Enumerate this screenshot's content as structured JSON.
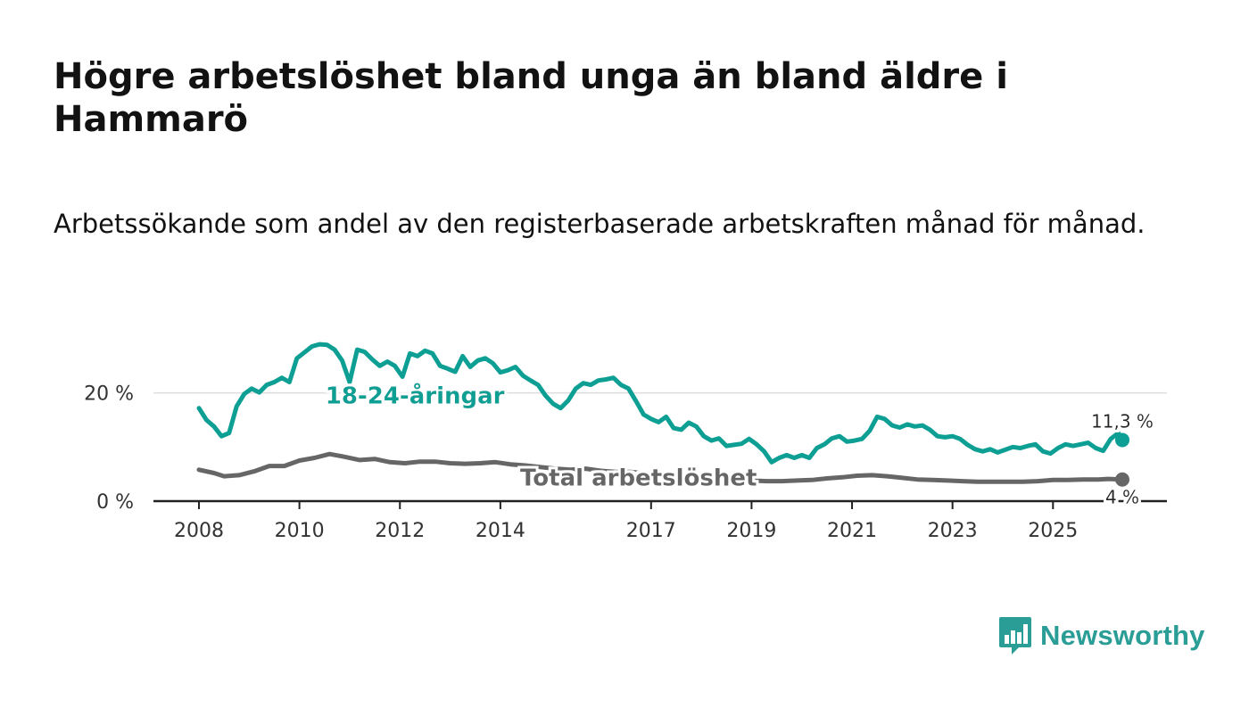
{
  "header": {
    "title": "Högre arbetslöshet bland unga än bland äldre i Hammarö",
    "subtitle": "Arbetssökande som andel av den registerbaserade arbetskraften månad för månad."
  },
  "brand": {
    "name": "Newsworthy",
    "color": "#2a9d96"
  },
  "chart_data": {
    "type": "line",
    "title": "Högre arbetslöshet bland unga än bland äldre i Hammarö",
    "subtitle": "Arbetssökande som andel av den registerbaserade arbetskraften månad för månad.",
    "xlabel": "",
    "ylabel": "",
    "xlim": [
      2008,
      2027
    ],
    "ylim": [
      0,
      30
    ],
    "x_ticks": [
      2008,
      2010,
      2012,
      2014,
      2017,
      2019,
      2021,
      2023,
      2025
    ],
    "y_ticks": [
      {
        "value": 0,
        "label": "0 %"
      },
      {
        "value": 20,
        "label": "20 %"
      }
    ],
    "grid": true,
    "series": [
      {
        "name": "18-24-åringar",
        "color": "#0e9f94",
        "last_value_label": "11,3 %",
        "label_at": [
          2012.3,
          19.5
        ],
        "points": [
          [
            2008.0,
            17.2
          ],
          [
            2008.15,
            15.0
          ],
          [
            2008.3,
            13.8
          ],
          [
            2008.45,
            12.0
          ],
          [
            2008.6,
            12.6
          ],
          [
            2008.75,
            17.5
          ],
          [
            2008.9,
            19.8
          ],
          [
            2009.05,
            20.8
          ],
          [
            2009.2,
            20.1
          ],
          [
            2009.35,
            21.5
          ],
          [
            2009.5,
            22.0
          ],
          [
            2009.65,
            22.8
          ],
          [
            2009.8,
            22.0
          ],
          [
            2009.95,
            26.4
          ],
          [
            2010.1,
            27.5
          ],
          [
            2010.25,
            28.6
          ],
          [
            2010.4,
            29.0
          ],
          [
            2010.55,
            28.9
          ],
          [
            2010.7,
            28.0
          ],
          [
            2010.85,
            26.0
          ],
          [
            2011.0,
            22.0
          ],
          [
            2011.15,
            28.0
          ],
          [
            2011.3,
            27.6
          ],
          [
            2011.45,
            26.2
          ],
          [
            2011.6,
            25.0
          ],
          [
            2011.75,
            25.8
          ],
          [
            2011.9,
            25.0
          ],
          [
            2012.05,
            23.0
          ],
          [
            2012.2,
            27.3
          ],
          [
            2012.35,
            26.8
          ],
          [
            2012.5,
            27.8
          ],
          [
            2012.65,
            27.3
          ],
          [
            2012.8,
            25.0
          ],
          [
            2012.95,
            24.5
          ],
          [
            2013.1,
            23.9
          ],
          [
            2013.25,
            26.8
          ],
          [
            2013.4,
            24.8
          ],
          [
            2013.55,
            26.0
          ],
          [
            2013.7,
            26.4
          ],
          [
            2013.85,
            25.5
          ],
          [
            2014.0,
            23.8
          ],
          [
            2014.15,
            24.2
          ],
          [
            2014.3,
            24.8
          ],
          [
            2014.45,
            23.2
          ],
          [
            2014.6,
            22.3
          ],
          [
            2014.75,
            21.5
          ],
          [
            2014.9,
            19.5
          ],
          [
            2015.05,
            18.0
          ],
          [
            2015.2,
            17.2
          ],
          [
            2015.35,
            18.6
          ],
          [
            2015.5,
            20.8
          ],
          [
            2015.65,
            21.8
          ],
          [
            2015.8,
            21.5
          ],
          [
            2015.95,
            22.3
          ],
          [
            2016.1,
            22.5
          ],
          [
            2016.25,
            22.8
          ],
          [
            2016.4,
            21.5
          ],
          [
            2016.55,
            20.8
          ],
          [
            2016.7,
            18.5
          ],
          [
            2016.85,
            16.0
          ],
          [
            2017.0,
            15.2
          ],
          [
            2017.15,
            14.6
          ],
          [
            2017.3,
            15.6
          ],
          [
            2017.45,
            13.5
          ],
          [
            2017.6,
            13.2
          ],
          [
            2017.75,
            14.5
          ],
          [
            2017.9,
            13.8
          ],
          [
            2018.05,
            12.0
          ],
          [
            2018.2,
            11.2
          ],
          [
            2018.35,
            11.6
          ],
          [
            2018.5,
            10.2
          ],
          [
            2018.65,
            10.4
          ],
          [
            2018.8,
            10.6
          ],
          [
            2018.95,
            11.5
          ],
          [
            2019.1,
            10.5
          ],
          [
            2019.25,
            9.2
          ],
          [
            2019.4,
            7.2
          ],
          [
            2019.55,
            8.0
          ],
          [
            2019.7,
            8.5
          ],
          [
            2019.85,
            8.0
          ],
          [
            2020.0,
            8.5
          ],
          [
            2020.15,
            8.0
          ],
          [
            2020.3,
            9.8
          ],
          [
            2020.45,
            10.5
          ],
          [
            2020.6,
            11.6
          ],
          [
            2020.75,
            12.0
          ],
          [
            2020.9,
            11.0
          ],
          [
            2021.05,
            11.2
          ],
          [
            2021.2,
            11.5
          ],
          [
            2021.35,
            13.0
          ],
          [
            2021.5,
            15.6
          ],
          [
            2021.65,
            15.2
          ],
          [
            2021.8,
            14.0
          ],
          [
            2021.95,
            13.6
          ],
          [
            2022.1,
            14.2
          ],
          [
            2022.25,
            13.8
          ],
          [
            2022.4,
            14.0
          ],
          [
            2022.55,
            13.2
          ],
          [
            2022.7,
            12.0
          ],
          [
            2022.85,
            11.8
          ],
          [
            2023.0,
            12.0
          ],
          [
            2023.15,
            11.5
          ],
          [
            2023.3,
            10.4
          ],
          [
            2023.45,
            9.6
          ],
          [
            2023.6,
            9.2
          ],
          [
            2023.75,
            9.6
          ],
          [
            2023.9,
            9.0
          ],
          [
            2024.05,
            9.5
          ],
          [
            2024.2,
            10.0
          ],
          [
            2024.35,
            9.8
          ],
          [
            2024.5,
            10.2
          ],
          [
            2024.65,
            10.5
          ],
          [
            2024.8,
            9.2
          ],
          [
            2024.95,
            8.8
          ],
          [
            2025.1,
            9.8
          ],
          [
            2025.25,
            10.5
          ],
          [
            2025.4,
            10.2
          ],
          [
            2025.55,
            10.5
          ],
          [
            2025.7,
            10.8
          ],
          [
            2025.85,
            9.8
          ],
          [
            2026.0,
            9.3
          ],
          [
            2026.15,
            11.5
          ],
          [
            2026.3,
            12.6
          ],
          [
            2026.38,
            11.3
          ]
        ]
      },
      {
        "name": "Total arbetslöshet",
        "color": "#666666",
        "last_value_label": "4 %",
        "label_at": [
          2016.75,
          4.4
        ],
        "points": [
          [
            2008.0,
            5.8
          ],
          [
            2008.3,
            5.2
          ],
          [
            2008.5,
            4.6
          ],
          [
            2008.8,
            4.8
          ],
          [
            2009.1,
            5.5
          ],
          [
            2009.4,
            6.5
          ],
          [
            2009.7,
            6.5
          ],
          [
            2010.0,
            7.5
          ],
          [
            2010.3,
            8.0
          ],
          [
            2010.6,
            8.7
          ],
          [
            2010.9,
            8.2
          ],
          [
            2011.2,
            7.6
          ],
          [
            2011.5,
            7.8
          ],
          [
            2011.8,
            7.2
          ],
          [
            2012.1,
            7.0
          ],
          [
            2012.4,
            7.3
          ],
          [
            2012.7,
            7.3
          ],
          [
            2013.0,
            7.0
          ],
          [
            2013.3,
            6.9
          ],
          [
            2013.6,
            7.0
          ],
          [
            2013.9,
            7.2
          ],
          [
            2014.2,
            6.8
          ],
          [
            2014.5,
            6.6
          ],
          [
            2014.8,
            6.3
          ],
          [
            2015.1,
            6.0
          ],
          [
            2015.4,
            5.8
          ],
          [
            2015.7,
            6.0
          ],
          [
            2016.0,
            5.6
          ],
          [
            2016.3,
            5.4
          ],
          [
            2016.6,
            5.4
          ],
          [
            2016.9,
            5.1
          ],
          [
            2017.2,
            4.7
          ],
          [
            2017.5,
            4.6
          ],
          [
            2017.8,
            4.5
          ],
          [
            2018.1,
            4.3
          ],
          [
            2018.4,
            4.1
          ],
          [
            2018.7,
            4.0
          ],
          [
            2019.0,
            3.8
          ],
          [
            2019.3,
            3.7
          ],
          [
            2019.6,
            3.7
          ],
          [
            2019.9,
            3.8
          ],
          [
            2020.2,
            3.9
          ],
          [
            2020.5,
            4.2
          ],
          [
            2020.8,
            4.4
          ],
          [
            2021.1,
            4.7
          ],
          [
            2021.4,
            4.8
          ],
          [
            2021.7,
            4.6
          ],
          [
            2022.0,
            4.3
          ],
          [
            2022.3,
            4.0
          ],
          [
            2022.6,
            3.9
          ],
          [
            2022.9,
            3.8
          ],
          [
            2023.2,
            3.7
          ],
          [
            2023.5,
            3.6
          ],
          [
            2023.8,
            3.6
          ],
          [
            2024.1,
            3.6
          ],
          [
            2024.4,
            3.6
          ],
          [
            2024.7,
            3.7
          ],
          [
            2025.0,
            3.9
          ],
          [
            2025.3,
            3.9
          ],
          [
            2025.6,
            4.0
          ],
          [
            2025.9,
            4.0
          ],
          [
            2026.1,
            4.1
          ],
          [
            2026.38,
            4.0
          ]
        ]
      }
    ]
  }
}
